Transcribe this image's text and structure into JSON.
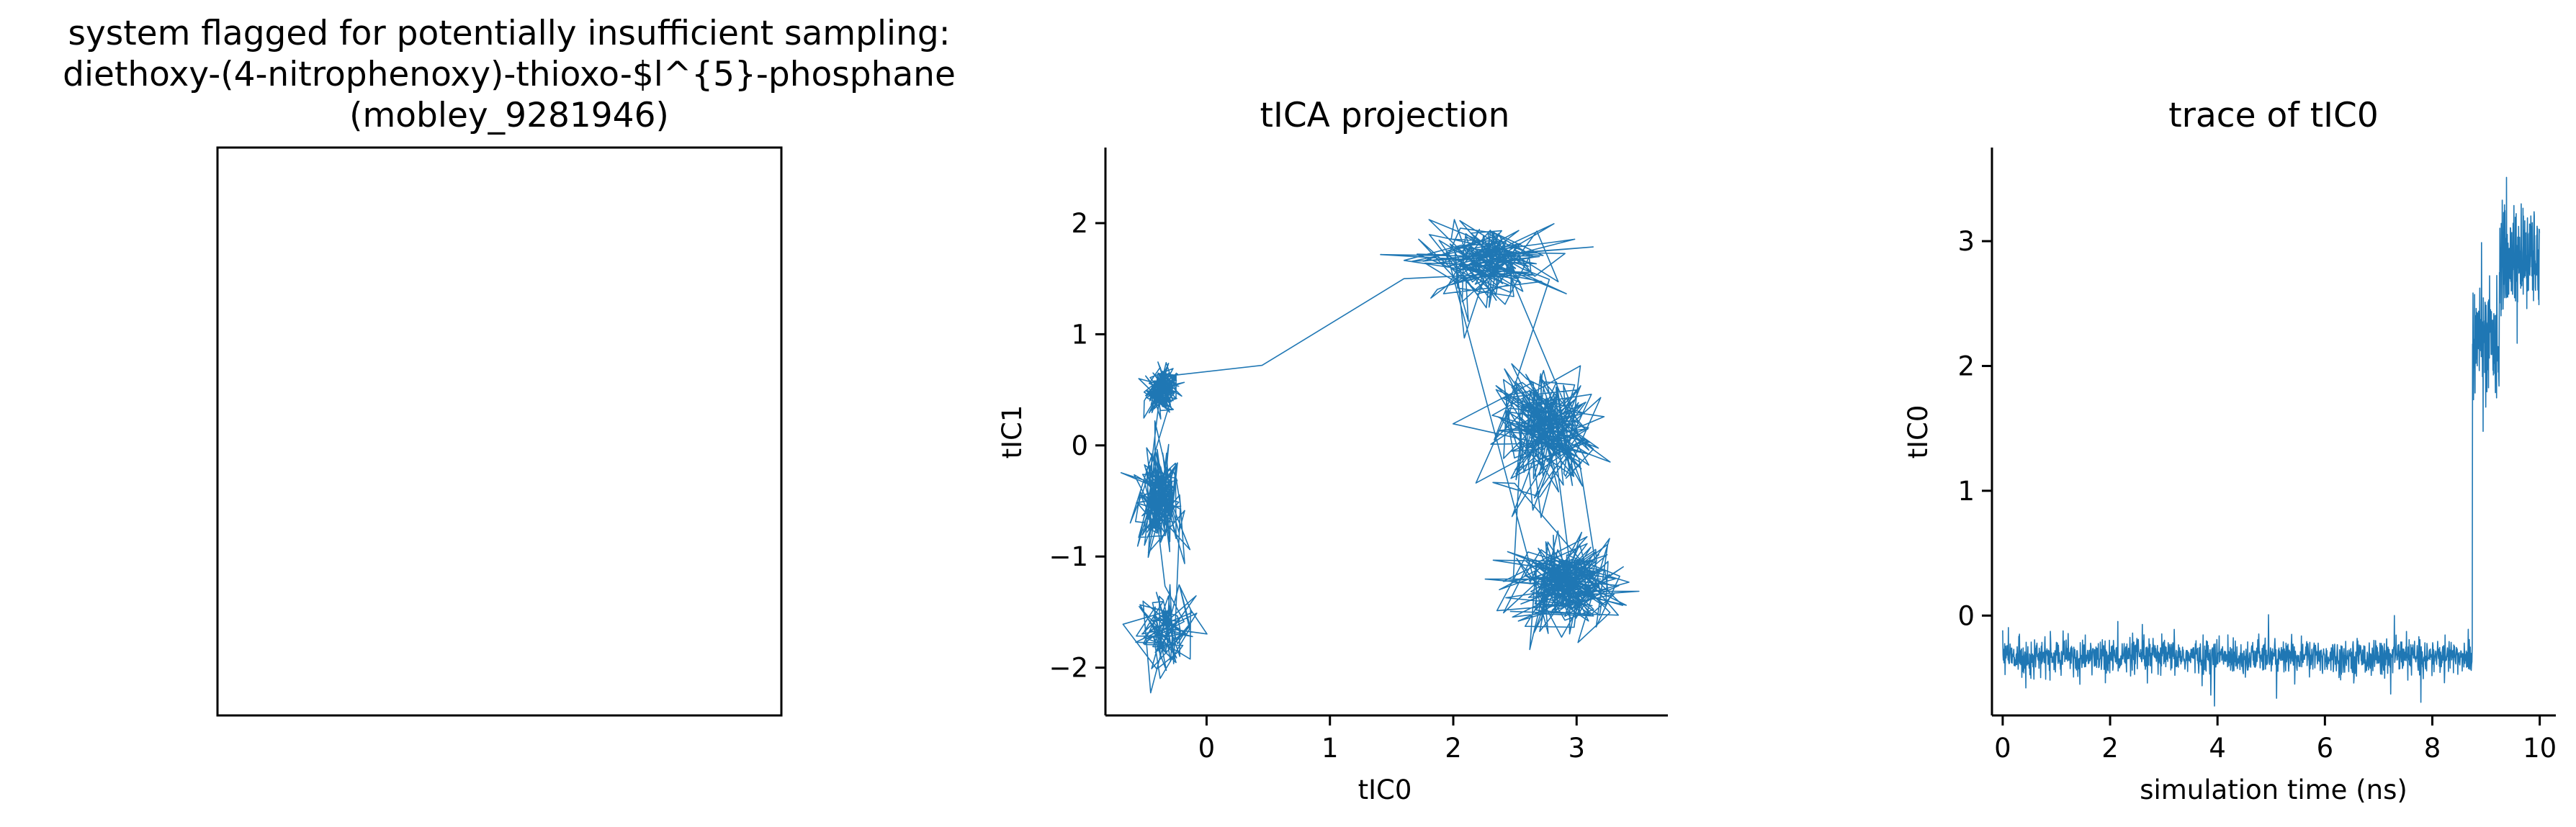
{
  "figure": {
    "title_lines": [
      "system flagged for potentially insufficient sampling:",
      "diethoxy-(4-nitrophenoxy)-thioxo-$l^{5}-phosphane",
      "(mobley_9281946)"
    ]
  },
  "colors": {
    "series": "#1f77b4",
    "axes": "#000000",
    "background": "#ffffff"
  },
  "chart_data": [
    {
      "type": "image",
      "title": "",
      "note_empty_panel": true
    },
    {
      "type": "line",
      "title": "tICA projection",
      "xlabel": "tIC0",
      "ylabel": "tIC1",
      "xlim": [
        -0.82,
        3.74
      ],
      "ylim": [
        -2.43,
        2.68
      ],
      "xticks": [
        0,
        1,
        2,
        3
      ],
      "yticks": [
        -2,
        -1,
        0,
        1,
        2
      ],
      "xtick_labels": [
        "0",
        "1",
        "2",
        "3"
      ],
      "ytick_labels": [
        "−2",
        "−1",
        "0",
        "1",
        "2"
      ],
      "clusters": [
        {
          "cx": -0.35,
          "cy": 0.5,
          "sx": 0.07,
          "sy": 0.1,
          "n": 180
        },
        {
          "cx": -0.38,
          "cy": -0.5,
          "sx": 0.09,
          "sy": 0.22,
          "n": 220
        },
        {
          "cx": -0.33,
          "cy": -1.65,
          "sx": 0.12,
          "sy": 0.17,
          "n": 220
        },
        {
          "cx": 2.25,
          "cy": 1.65,
          "sx": 0.28,
          "sy": 0.17,
          "n": 260
        },
        {
          "cx": 2.75,
          "cy": 0.15,
          "sx": 0.2,
          "sy": 0.28,
          "n": 240
        },
        {
          "cx": 2.9,
          "cy": -1.25,
          "sx": 0.22,
          "sy": 0.2,
          "n": 260
        }
      ],
      "bridge": {
        "x": [
          -0.35,
          0.45,
          1.6
        ],
        "y": [
          0.62,
          0.72,
          1.5
        ]
      }
    },
    {
      "type": "line",
      "title": "trace of tIC0",
      "xlabel": "simulation time (ns)",
      "ylabel": "tIC0",
      "xlim": [
        -0.2,
        10.3
      ],
      "ylim": [
        -0.8,
        3.75
      ],
      "xticks": [
        0,
        2,
        4,
        6,
        8,
        10
      ],
      "yticks": [
        0,
        1,
        2,
        3
      ],
      "xtick_labels": [
        "0",
        "2",
        "4",
        "6",
        "8",
        "10"
      ],
      "ytick_labels": [
        "0",
        "1",
        "2",
        "3"
      ],
      "segments": [
        {
          "t0": 0.0,
          "t1": 8.75,
          "mean": -0.33,
          "noise": 0.07,
          "n": 1400
        },
        {
          "t0": 8.75,
          "t1": 9.25,
          "mean": 2.2,
          "noise": 0.22,
          "n": 120
        },
        {
          "t0": 9.25,
          "t1": 10.0,
          "mean": 2.85,
          "noise": 0.2,
          "n": 200
        }
      ]
    }
  ]
}
